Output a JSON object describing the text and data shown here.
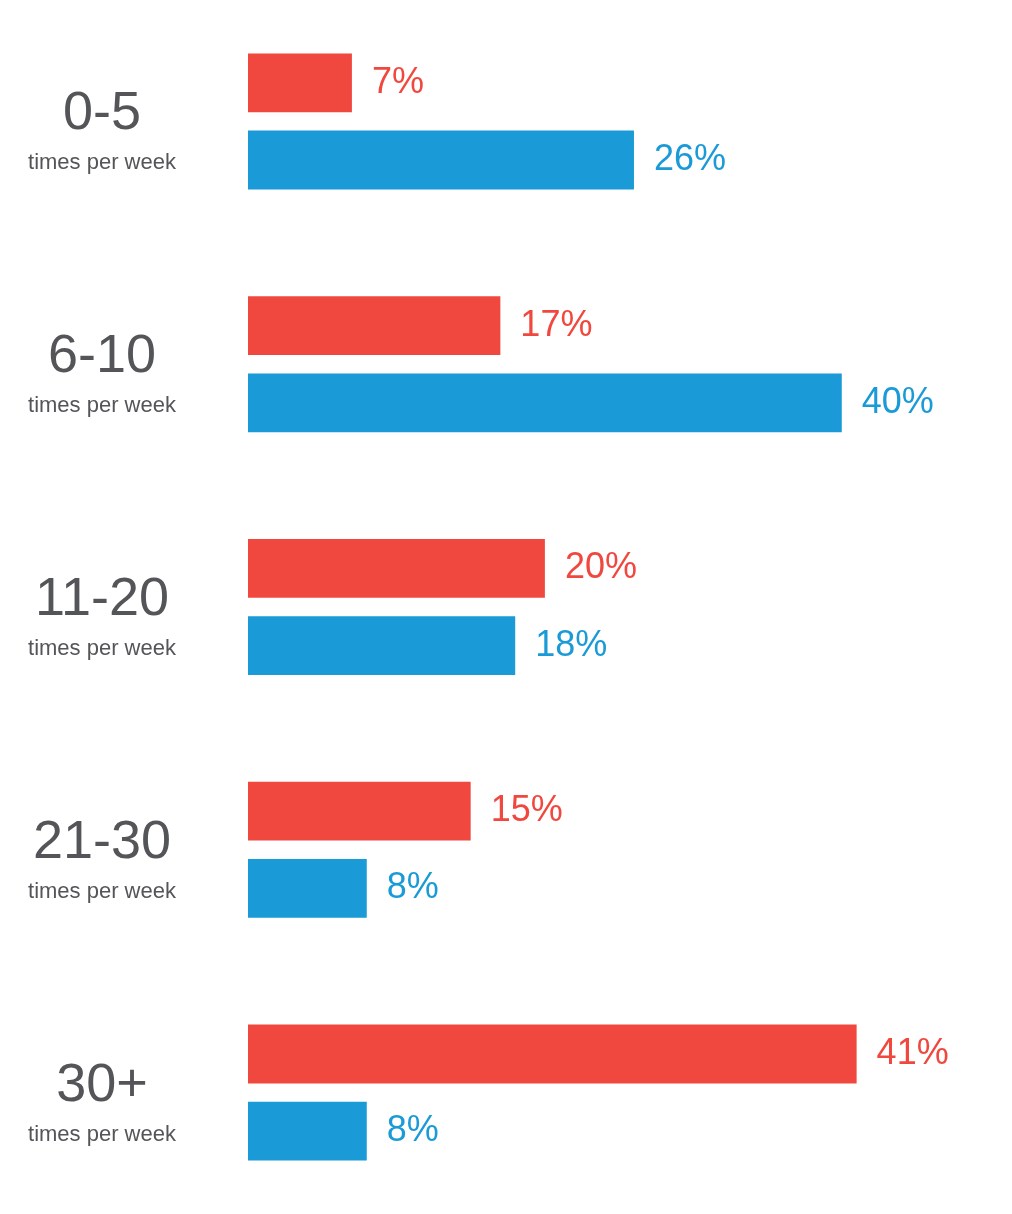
{
  "chart_data": {
    "type": "bar",
    "orientation": "horizontal",
    "categories": [
      "0-5 times per week",
      "6-10 times per week",
      "11-20 times per week",
      "21-30 times per week",
      "30+ times per week"
    ],
    "series": [
      {
        "color": "#f0483e",
        "values": [
          7,
          17,
          20,
          15,
          41
        ],
        "value_labels": [
          "7%",
          "17%",
          "20%",
          "15%",
          "41%"
        ]
      },
      {
        "color": "#1a9ad6",
        "values": [
          26,
          40,
          18,
          8,
          8
        ],
        "value_labels": [
          "26%",
          "40%",
          "18%",
          "8%",
          "8%"
        ]
      }
    ]
  }
}
